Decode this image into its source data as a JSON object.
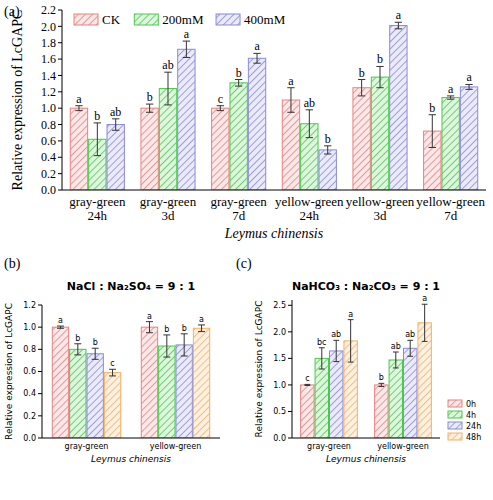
{
  "chart_data": [
    {
      "type": "bar",
      "panel_label": "(a)",
      "x_label": "Leymus chinensis",
      "y_label": "Relative expression of LcGAPC",
      "categories": [
        "gray-green\n24h",
        "gray-green\n3d",
        "gray-green\n7d",
        "yellow-green\n24h",
        "yellow-green\n3d",
        "yellow-green\n7d"
      ],
      "series": [
        {
          "name": "CK",
          "color": "#e8817f",
          "values": [
            1.0,
            1.0,
            1.0,
            1.1,
            1.25,
            0.72
          ],
          "errors": [
            0.03,
            0.05,
            0.03,
            0.15,
            0.1,
            0.2
          ],
          "letters": [
            "a",
            "b",
            "c",
            "a",
            "b",
            "b"
          ]
        },
        {
          "name": "200mM",
          "color": "#4cc94c",
          "values": [
            0.62,
            1.24,
            1.31,
            0.81,
            1.38,
            1.13
          ],
          "errors": [
            0.2,
            0.2,
            0.04,
            0.17,
            0.13,
            0.02
          ],
          "letters": [
            "b",
            "ab",
            "b",
            "ab",
            "b",
            "a"
          ]
        },
        {
          "name": "400mM",
          "color": "#8a8ad8",
          "values": [
            0.8,
            1.72,
            1.61,
            0.49,
            2.01,
            1.26
          ],
          "errors": [
            0.07,
            0.1,
            0.06,
            0.05,
            0.04,
            0.03
          ],
          "letters": [
            "ab",
            "a",
            "a",
            "b",
            "a",
            "a"
          ]
        }
      ],
      "ylim": [
        0,
        2.2
      ],
      "yticks": [
        {
          "value": 0,
          "label": "0.0"
        },
        {
          "value": 0.2,
          "label": "0.2"
        },
        {
          "value": 0.4,
          "label": "0.4"
        },
        {
          "value": 0.6,
          "label": "0.6"
        },
        {
          "value": 0.8,
          "label": "0.8"
        },
        {
          "value": 1,
          "label": "1.0"
        },
        {
          "value": 1.2,
          "label": "1.2"
        },
        {
          "value": 1.4,
          "label": "1.4"
        },
        {
          "value": 1.6,
          "label": "1.6"
        },
        {
          "value": 1.8,
          "label": "1.8"
        },
        {
          "value": 2,
          "label": "2.0"
        },
        {
          "value": 2.2,
          "label": "2.2"
        }
      ],
      "legend": "upper left"
    },
    {
      "type": "bar",
      "panel_label": "(b)",
      "title": "NaCl : Na₂SO₄ = 9 : 1",
      "x_label": "Leymus chinensis",
      "y_label": "Relative expression of LcGAPC",
      "categories": [
        "gray-green",
        "yellow-green"
      ],
      "series": [
        {
          "name": "0h",
          "color": "#e8817f",
          "values": [
            1.0,
            1.0
          ],
          "errors": [
            0.01,
            0.05
          ],
          "letters": [
            "a",
            "a"
          ]
        },
        {
          "name": "4h",
          "color": "#4cc94c",
          "values": [
            0.8,
            0.83
          ],
          "errors": [
            0.05,
            0.1
          ],
          "letters": [
            "b",
            "b"
          ]
        },
        {
          "name": "24h",
          "color": "#8a8ad8",
          "values": [
            0.76,
            0.84
          ],
          "errors": [
            0.05,
            0.1
          ],
          "letters": [
            "b",
            "b"
          ]
        },
        {
          "name": "48h",
          "color": "#f5b062",
          "values": [
            0.59,
            0.99
          ],
          "errors": [
            0.03,
            0.03
          ],
          "letters": [
            "c",
            "a"
          ]
        }
      ],
      "ylim": [
        0,
        1.2
      ],
      "yticks": [
        {
          "value": 0,
          "label": "0.0"
        },
        {
          "value": 0.2,
          "label": "0.2"
        },
        {
          "value": 0.4,
          "label": "0.4"
        },
        {
          "value": 0.6,
          "label": "0.6"
        },
        {
          "value": 0.8,
          "label": "0.8"
        },
        {
          "value": 1,
          "label": "1.0"
        },
        {
          "value": 1.2,
          "label": "1.2"
        }
      ]
    },
    {
      "type": "bar",
      "panel_label": "(c)",
      "title": "NaHCO₃ : Na₂CO₃ = 9 : 1",
      "x_label": "Leymus chinensis",
      "y_label": "Relative expression of LcGAPC",
      "categories": [
        "gray-green",
        "yellow-green"
      ],
      "series": [
        {
          "name": "0h",
          "color": "#e8817f",
          "values": [
            1.0,
            1.0
          ],
          "errors": [
            0.01,
            0.03
          ],
          "letters": [
            "c",
            "b"
          ]
        },
        {
          "name": "4h",
          "color": "#4cc94c",
          "values": [
            1.5,
            1.47
          ],
          "errors": [
            0.2,
            0.15
          ],
          "letters": [
            "bc",
            "ab"
          ]
        },
        {
          "name": "24h",
          "color": "#8a8ad8",
          "values": [
            1.64,
            1.69
          ],
          "errors": [
            0.2,
            0.15
          ],
          "letters": [
            "ab",
            "ab"
          ]
        },
        {
          "name": "48h",
          "color": "#f5b062",
          "values": [
            1.83,
            2.17
          ],
          "errors": [
            0.4,
            0.35
          ],
          "letters": [
            "a",
            "a"
          ]
        }
      ],
      "ylim": [
        0,
        2.6
      ],
      "yticks": [
        {
          "value": 0,
          "label": "0.0"
        },
        {
          "value": 0.5,
          "label": "0.5"
        },
        {
          "value": 1,
          "label": "1.0"
        },
        {
          "value": 1.5,
          "label": "1.5"
        },
        {
          "value": 2,
          "label": "2.0"
        },
        {
          "value": 2.5,
          "label": "2.5"
        }
      ],
      "legend": "right"
    }
  ]
}
